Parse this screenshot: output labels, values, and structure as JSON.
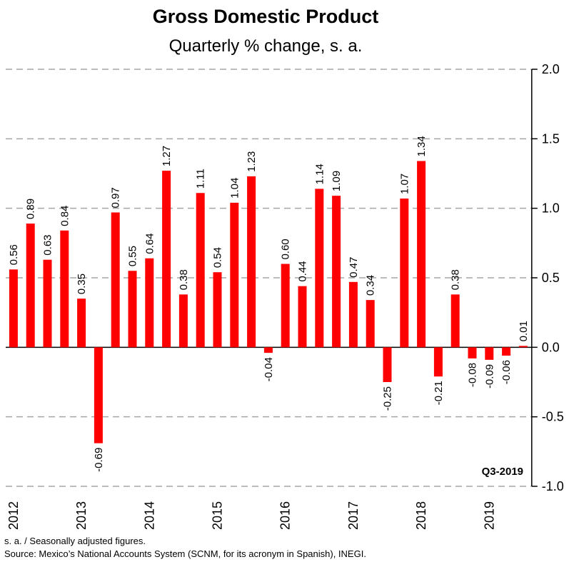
{
  "chart_data": {
    "type": "bar",
    "title": "Gross Domestic Product",
    "subtitle": "Quarterly % change, s. a.",
    "annotation": "Q3-2019",
    "notes": [
      "s. a. / Seasonally adjusted figures.",
      "Source: Mexico’s National Accounts System (SCNM, for its acronym in Spanish), INEGI."
    ],
    "categories": [
      "2012",
      null,
      null,
      null,
      "2013",
      null,
      null,
      null,
      "2014",
      null,
      null,
      null,
      "2015",
      null,
      null,
      null,
      "2016",
      null,
      null,
      null,
      "2017",
      null,
      null,
      null,
      "2018",
      null,
      null,
      null,
      "2019",
      null,
      null
    ],
    "values": [
      0.56,
      0.89,
      0.63,
      0.84,
      0.35,
      -0.69,
      0.97,
      0.55,
      0.64,
      1.27,
      0.38,
      1.11,
      0.54,
      1.04,
      1.23,
      -0.04,
      0.6,
      0.44,
      1.14,
      1.09,
      0.47,
      0.34,
      -0.25,
      1.07,
      1.34,
      -0.21,
      0.38,
      -0.08,
      -0.09,
      -0.06,
      0.01
    ],
    "value_labels": [
      "0.56",
      "0.89",
      "0.63",
      "0.84",
      "0.35",
      "-0.69",
      "0.97",
      "0.55",
      "0.64",
      "1.27",
      "0.38",
      "1.11",
      "0.54",
      "1.04",
      "1.23",
      "-0.04",
      "0.60",
      "0.44",
      "1.14",
      "1.09",
      "0.47",
      "0.34",
      "-0.25",
      "1.07",
      "1.34",
      "-0.21",
      "0.38",
      "-0.08",
      "-0.09",
      "-0.06",
      "0.01"
    ],
    "color": "#ff0000",
    "ylim": [
      -1.0,
      2.0
    ],
    "yticks": [
      {
        "value": -1.0,
        "label": "-1.0"
      },
      {
        "value": -0.5,
        "label": "-0.5"
      },
      {
        "value": 0,
        "label": "0.0"
      },
      {
        "value": 0.5,
        "label": "0.5"
      },
      {
        "value": 1.0,
        "label": "1.0"
      },
      {
        "value": 1.5,
        "label": "1.5"
      },
      {
        "value": 2.0,
        "label": "2.0"
      }
    ],
    "grid": true
  }
}
